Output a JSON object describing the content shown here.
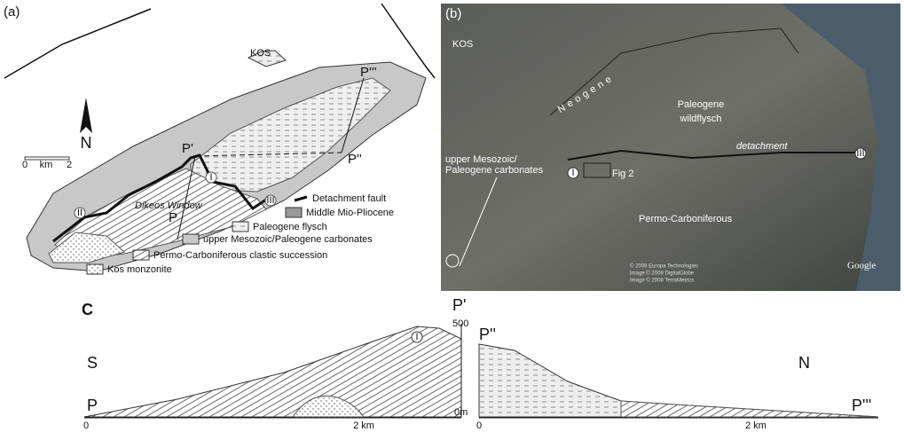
{
  "panel_a": {
    "label": "(a)",
    "island": "KOS",
    "north": "N",
    "scale": [
      "0",
      "km",
      "2"
    ],
    "points": [
      "P",
      "P'",
      "P''",
      "P'''"
    ],
    "units": [
      "I",
      "II",
      "III"
    ],
    "window": "Dikeos Window",
    "legend": [
      "Detachment fault",
      "Middle Mio-Pliocene",
      "Paleogene flysch",
      "upper Mesozoic/Paleogene carbonates",
      "Permo-Carboniferous clastic succession",
      "Kos monzonite"
    ]
  },
  "panel_b": {
    "label": "(b)",
    "island": "KOS",
    "neogene": "Neogene",
    "wildflysch": [
      "Paleogene",
      "wildflysch"
    ],
    "detachment": "detachment",
    "carbonates": [
      "upper Mesozoic/",
      "Paleogene carbonates"
    ],
    "fig": "Fig 2",
    "permo": "Permo-Carboniferous",
    "units": [
      "I",
      "III"
    ],
    "credits": [
      "© 2008 Europa Technologies",
      "Image © 2008 DigitalGlobe",
      "Image © 2008 TerraMetrics"
    ],
    "logo": "Google"
  },
  "panel_c": {
    "label": "C",
    "south": "S",
    "north": "N",
    "points": [
      "P",
      "P'",
      "P''",
      "P'''"
    ],
    "unit": "I",
    "elevation": [
      "500",
      "0m"
    ],
    "distance_left": [
      "0",
      "2 km"
    ],
    "distance_right": [
      "0",
      "2 km"
    ]
  }
}
